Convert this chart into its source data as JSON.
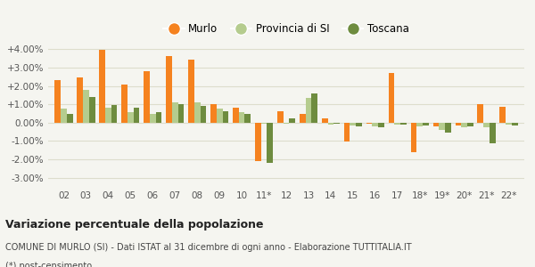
{
  "categories": [
    "02",
    "03",
    "04",
    "05",
    "06",
    "07",
    "08",
    "09",
    "10",
    "11*",
    "12",
    "13",
    "14",
    "15",
    "16",
    "17",
    "18*",
    "19*",
    "20*",
    "21*",
    "22*"
  ],
  "murlo": [
    2.3,
    2.45,
    3.95,
    2.1,
    2.8,
    3.65,
    3.45,
    1.0,
    0.8,
    -2.1,
    0.6,
    0.5,
    0.25,
    -1.05,
    -0.05,
    2.7,
    -1.6,
    -0.2,
    -0.15,
    1.0,
    0.85
  ],
  "provincia": [
    0.75,
    1.8,
    0.8,
    0.55,
    0.5,
    1.1,
    1.1,
    0.75,
    0.55,
    -0.05,
    -0.05,
    1.35,
    -0.1,
    -0.15,
    -0.2,
    -0.1,
    -0.2,
    -0.4,
    -0.25,
    -0.25,
    -0.1
  ],
  "toscana": [
    0.5,
    1.4,
    0.95,
    0.8,
    0.55,
    1.0,
    0.9,
    0.6,
    0.5,
    -2.2,
    0.25,
    1.6,
    -0.05,
    -0.2,
    -0.25,
    -0.1,
    -0.15,
    -0.55,
    -0.2,
    -1.1,
    -0.15
  ],
  "murlo_color": "#f5821f",
  "provincia_color": "#b5cc8e",
  "toscana_color": "#6e8c3f",
  "bg_color": "#f5f5f0",
  "grid_color": "#ddddcc",
  "title_bold": "Variazione percentuale della popolazione",
  "subtitle": "COMUNE DI MURLO (SI) - Dati ISTAT al 31 dicembre di ogni anno - Elaborazione TUTTITALIA.IT",
  "footnote": "(*) post-censimento",
  "ylim": [
    -3.5,
    4.5
  ],
  "yticks": [
    -3.0,
    -2.0,
    -1.0,
    0.0,
    1.0,
    2.0,
    3.0,
    4.0
  ],
  "ytick_labels": [
    "-3.00%",
    "-2.00%",
    "-1.00%",
    "0.00%",
    "+1.00%",
    "+2.00%",
    "+3.00%",
    "+4.00%"
  ]
}
